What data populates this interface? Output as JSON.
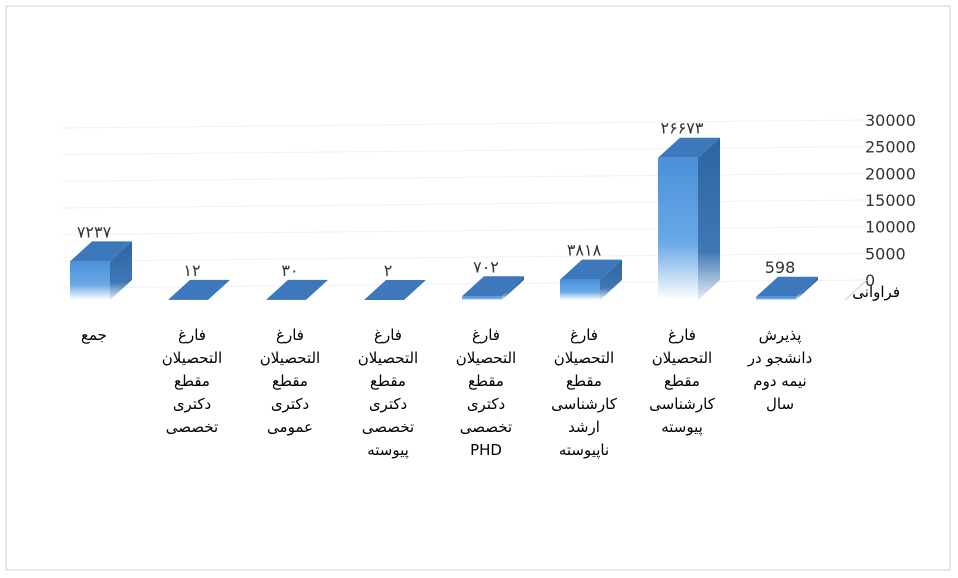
{
  "chart_data": {
    "type": "bar3d",
    "categories": [
      "جمع",
      "فارغ\nالتحصیلان\nمقطع\nدکتری\nتخصصی",
      "فارغ\nالتحصیلان\nمقطع\nدکتری\nعمومی",
      "فارغ\nالتحصیلان\nمقطع\nدکتری\nتخصصی\nپیوسته",
      "فارغ\nالتحصیلان\nمقطع\nدکتری\nتخصصی\nPHD",
      "فارغ\nالتحصیلان\nمقطع\nکارشناسی\nارشد\nناپیوسته",
      "فارغ\nالتحصیلان\nمقطع\nکارشناسی\nپیوسته",
      "پذیرش\nدانشجو در\nنیمه دوم\nسال"
    ],
    "values": [
      7237,
      12,
      30,
      2,
      702,
      3818,
      26673,
      598
    ],
    "value_labels": [
      "۷۲۳۷",
      "۱۲",
      "۳۰",
      "۲",
      "۷۰۲",
      "۳۸۱۸",
      "۲۶۶۷۳",
      "598"
    ],
    "y_axis_label": "فراوانی",
    "ylim": [
      0,
      30000
    ],
    "yticks": [
      0,
      5000,
      10000,
      15000,
      20000,
      25000,
      30000
    ],
    "color": "#4a90d9",
    "grid": true
  }
}
